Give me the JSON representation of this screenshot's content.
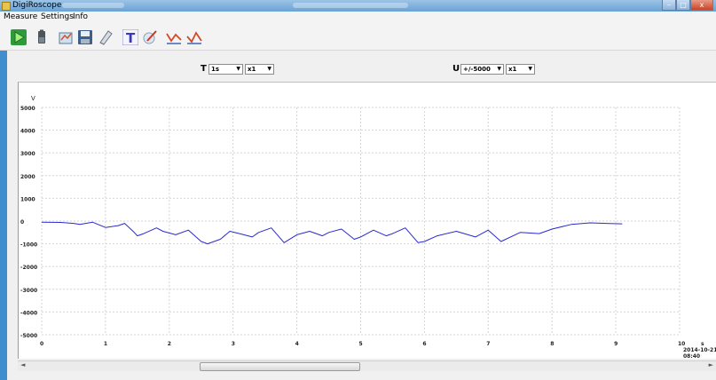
{
  "window": {
    "title": "DigiRoscope",
    "minimize": "–",
    "maximize": "□",
    "close": "x"
  },
  "menu": [
    "Measure",
    "Settings",
    "Info"
  ],
  "toolbar_icons": [
    "play-icon",
    "battery-icon",
    "open-file-icon",
    "save-icon",
    "clear-icon",
    "text-icon",
    "edit-icon",
    "chart-line-icon",
    "chart-line-alt-icon"
  ],
  "controls": {
    "time": {
      "label": "T",
      "range": "1s",
      "scale": "x1"
    },
    "voltage": {
      "label": "U",
      "range": "+/-5000",
      "scale": "x1"
    }
  },
  "chart_data": {
    "type": "line",
    "ylabel": "V",
    "xlabel": "s",
    "xlim": [
      0,
      10
    ],
    "ylim": [
      -5000,
      5000
    ],
    "x_ticks": [
      "0",
      "1",
      "2",
      "3",
      "4",
      "5",
      "6",
      "7",
      "8",
      "9",
      "10"
    ],
    "y_ticks": [
      "5000",
      "4000",
      "3000",
      "2000",
      "1000",
      "0",
      "-1000",
      "-2000",
      "-3000",
      "-4000",
      "-5000"
    ],
    "grid": true,
    "timestamp_date": "2014-10-21",
    "timestamp_time": "08:40",
    "series": [
      {
        "color": "#2a2ad0",
        "x": [
          0,
          0.3,
          0.5,
          0.6,
          0.8,
          1.0,
          1.2,
          1.3,
          1.45,
          1.5,
          1.6,
          1.8,
          1.9,
          2.1,
          2.3,
          2.5,
          2.6,
          2.8,
          2.95,
          3.1,
          3.3,
          3.4,
          3.6,
          3.8,
          4.0,
          4.2,
          4.4,
          4.5,
          4.7,
          4.9,
          5.0,
          5.2,
          5.4,
          5.5,
          5.7,
          5.9,
          6.0,
          6.2,
          6.5,
          6.8,
          7.0,
          7.2,
          7.5,
          7.8,
          8.0,
          8.3,
          8.6,
          8.9,
          9.1
        ],
        "y": [
          -50,
          -60,
          -100,
          -150,
          -50,
          -280,
          -200,
          -100,
          -500,
          -650,
          -550,
          -300,
          -450,
          -600,
          -400,
          -900,
          -1000,
          -800,
          -450,
          -550,
          -700,
          -500,
          -300,
          -950,
          -600,
          -450,
          -650,
          -500,
          -350,
          -800,
          -700,
          -400,
          -650,
          -550,
          -300,
          -950,
          -900,
          -650,
          -450,
          -700,
          -400,
          -900,
          -500,
          -550,
          -350,
          -150,
          -80,
          -110,
          -120
        ]
      }
    ]
  }
}
